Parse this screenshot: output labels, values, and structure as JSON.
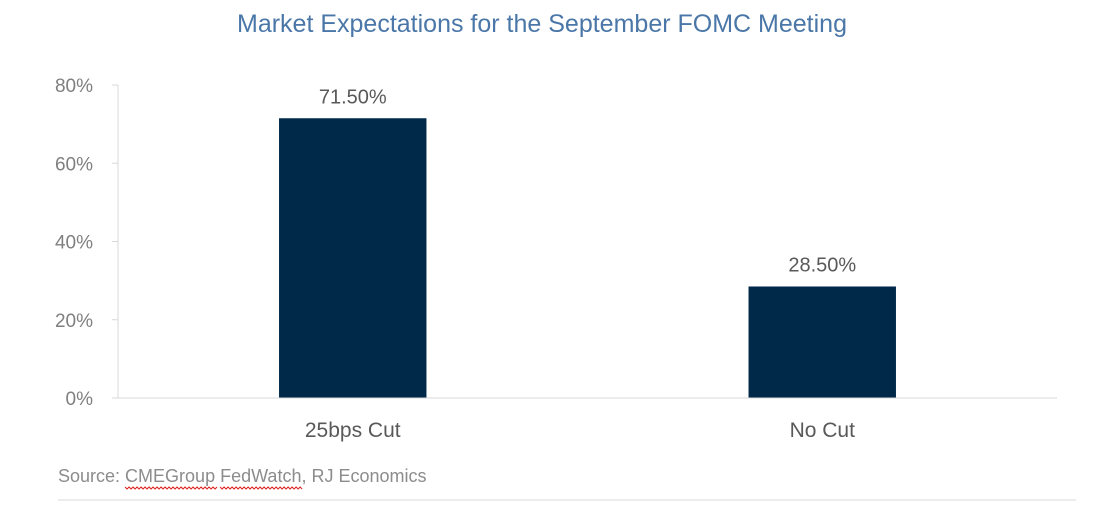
{
  "colors": {
    "bar": "#002849",
    "title": "#4a77a8",
    "axis": "#d9d9d9",
    "source": "#8c8c8c",
    "spellcheck_underline": "#e02020"
  },
  "source": {
    "prefix": "Source: ",
    "part1": "CMEGroup",
    "space": " ",
    "part2": "FedWatch",
    "suffix": ", RJ Economics"
  },
  "chart_data": {
    "type": "bar",
    "title": "Market Expectations for the September FOMC Meeting",
    "xlabel": "",
    "ylabel": "",
    "categories": [
      "25bps Cut",
      "No Cut"
    ],
    "values": [
      71.5,
      28.5
    ],
    "data_labels": [
      "71.50%",
      "28.50%"
    ],
    "ylim": [
      0,
      80
    ],
    "yticks": [
      0,
      20,
      40,
      60,
      80
    ],
    "ytick_labels": [
      "0%",
      "20%",
      "40%",
      "60%",
      "80%"
    ],
    "grid": false,
    "legend": "none"
  }
}
